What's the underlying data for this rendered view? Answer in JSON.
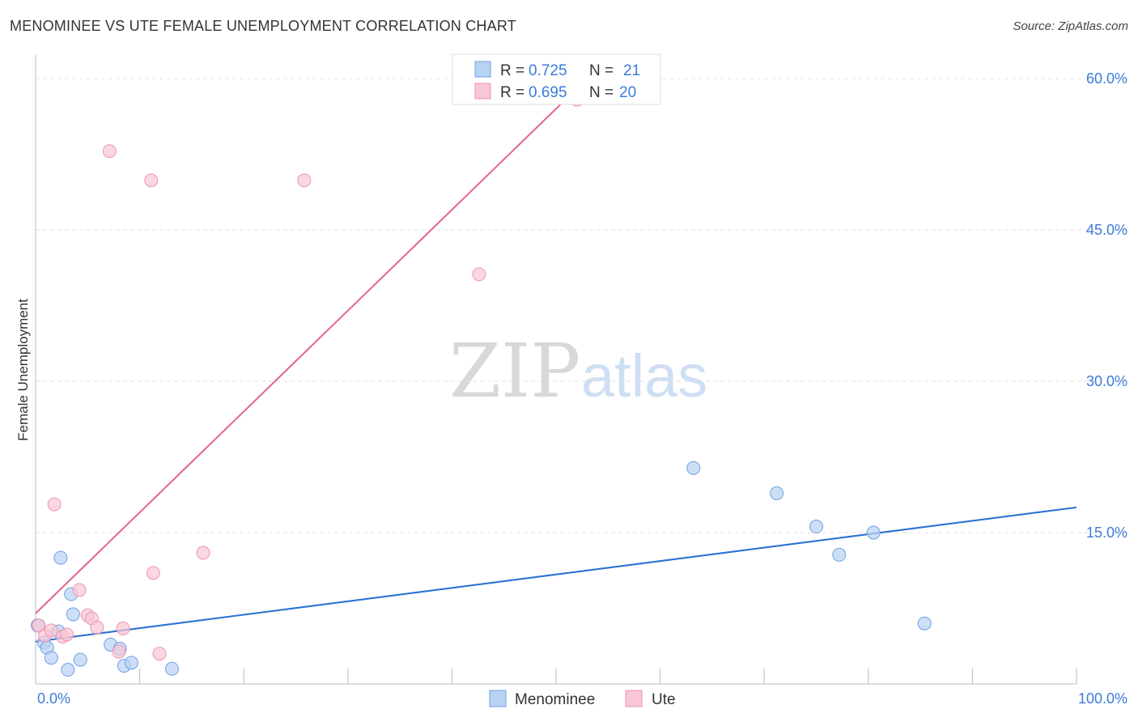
{
  "title": "MENOMINEE VS UTE FEMALE UNEMPLOYMENT CORRELATION CHART",
  "source": "Source: ZipAtlas.com",
  "watermark": {
    "zip": "ZIP",
    "atlas": "atlas"
  },
  "colors": {
    "menominee_fill": "#b8d2f3",
    "menominee_stroke": "#6fa0e0",
    "menominee_line": "#2a72d2",
    "ute_fill": "#f8c6d4",
    "ute_stroke": "#ee94ae",
    "ute_line": "#e2668e",
    "tick_text": "#3b7dd8"
  },
  "legend": {
    "rows": [
      {
        "series": "Menominee",
        "r_label": "R =",
        "r_value": "0.725",
        "n_label": "N =",
        "n_value": "21"
      },
      {
        "series": "Ute",
        "r_label": "R =",
        "r_value": "0.695",
        "n_label": "N =",
        "n_value": "20"
      }
    ]
  },
  "chart_data": {
    "type": "scatter",
    "title": "MENOMINEE VS UTE FEMALE UNEMPLOYMENT CORRELATION CHART",
    "xlabel": "",
    "ylabel": "Female Unemployment",
    "xlim": [
      0,
      100
    ],
    "ylim": [
      0,
      60
    ],
    "x_tick_labels": [
      "0.0%",
      "100.0%"
    ],
    "y_ticks": [
      15,
      30,
      45,
      60
    ],
    "y_tick_labels": [
      "15.0%",
      "30.0%",
      "45.0%",
      "60.0%"
    ],
    "series": [
      {
        "name": "Menominee",
        "points": [
          [
            0.2,
            5.8
          ],
          [
            0.8,
            4.1
          ],
          [
            1.1,
            3.6
          ],
          [
            1.5,
            2.6
          ],
          [
            2.2,
            5.2
          ],
          [
            2.4,
            12.5
          ],
          [
            3.1,
            1.4
          ],
          [
            3.4,
            8.9
          ],
          [
            3.6,
            6.9
          ],
          [
            4.3,
            2.4
          ],
          [
            7.2,
            3.9
          ],
          [
            8.1,
            3.5
          ],
          [
            8.5,
            1.8
          ],
          [
            9.2,
            2.1
          ],
          [
            13.1,
            1.5
          ],
          [
            63.2,
            21.4
          ],
          [
            71.2,
            18.9
          ],
          [
            75.0,
            15.6
          ],
          [
            77.2,
            12.8
          ],
          [
            80.5,
            15.0
          ],
          [
            85.4,
            6.0
          ]
        ],
        "trend": {
          "x1": 0,
          "y1": 4.2,
          "x2": 100,
          "y2": 17.5
        }
      },
      {
        "name": "Ute",
        "points": [
          [
            0.3,
            5.8
          ],
          [
            0.9,
            4.8
          ],
          [
            1.5,
            5.3
          ],
          [
            1.8,
            17.8
          ],
          [
            2.6,
            4.7
          ],
          [
            3.0,
            4.9
          ],
          [
            4.2,
            9.3
          ],
          [
            5.0,
            6.8
          ],
          [
            5.4,
            6.5
          ],
          [
            5.9,
            5.6
          ],
          [
            7.1,
            52.8
          ],
          [
            8.0,
            3.2
          ],
          [
            8.4,
            5.5
          ],
          [
            11.1,
            49.9
          ],
          [
            11.3,
            11.0
          ],
          [
            11.9,
            3.0
          ],
          [
            16.1,
            13.0
          ],
          [
            25.8,
            49.9
          ],
          [
            42.6,
            40.6
          ],
          [
            52.0,
            57.9
          ]
        ],
        "trend": {
          "x1": 0,
          "y1": 7.0,
          "x2": 52.5,
          "y2": 59.5
        }
      }
    ]
  }
}
